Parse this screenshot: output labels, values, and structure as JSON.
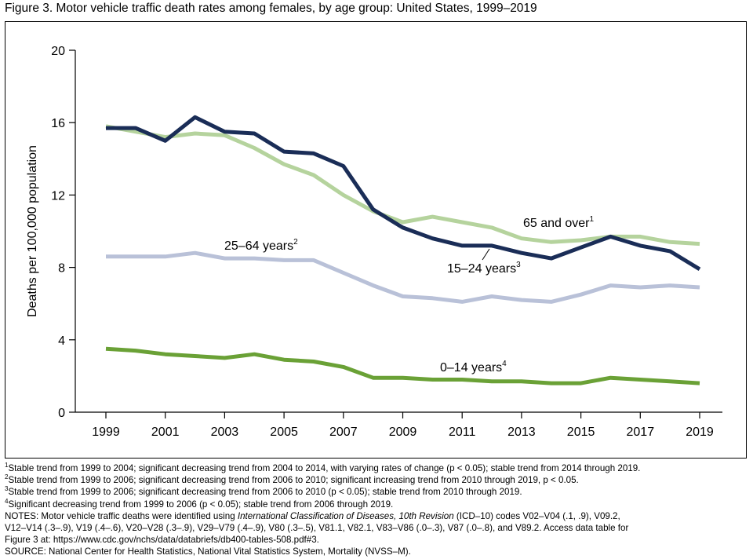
{
  "figure_title": "Figure 3. Motor vehicle traffic death rates among females, by age group: United States, 1999–2019",
  "chart_data": {
    "type": "line",
    "ylabel": "Deaths per 100,000 population",
    "xlabel": "",
    "xlim": [
      1999,
      2019
    ],
    "ylim": [
      0,
      20
    ],
    "yticks": [
      0,
      4,
      8,
      12,
      16,
      20
    ],
    "xticks": [
      1999,
      2001,
      2003,
      2005,
      2007,
      2009,
      2011,
      2013,
      2015,
      2017,
      2019
    ],
    "grid": false,
    "x": [
      1999,
      2000,
      2001,
      2002,
      2003,
      2004,
      2005,
      2006,
      2007,
      2008,
      2009,
      2010,
      2011,
      2012,
      2013,
      2014,
      2015,
      2016,
      2017,
      2018,
      2019
    ],
    "series": [
      {
        "name": "65 and over",
        "footnote": "1",
        "color": "#b5d39d",
        "values": [
          15.8,
          15.5,
          15.2,
          15.4,
          15.3,
          14.6,
          13.7,
          13.1,
          12.0,
          11.1,
          10.5,
          10.8,
          10.5,
          10.2,
          9.6,
          9.4,
          9.5,
          9.7,
          9.7,
          9.4,
          9.3
        ]
      },
      {
        "name": "15–24 years",
        "footnote": "3",
        "color": "#1a2d57",
        "values": [
          15.7,
          15.7,
          15.0,
          16.3,
          15.5,
          15.4,
          14.4,
          14.3,
          13.6,
          11.2,
          10.2,
          9.6,
          9.2,
          9.2,
          8.8,
          8.5,
          9.1,
          9.7,
          9.2,
          8.9,
          7.9
        ]
      },
      {
        "name": "25–64 years",
        "footnote": "2",
        "color": "#b9c1d8",
        "values": [
          8.6,
          8.6,
          8.6,
          8.8,
          8.5,
          8.5,
          8.4,
          8.4,
          7.7,
          7.0,
          6.4,
          6.3,
          6.1,
          6.4,
          6.2,
          6.1,
          6.5,
          7.0,
          6.9,
          7.0,
          6.9
        ]
      },
      {
        "name": "0–14 years",
        "footnote": "4",
        "color": "#6aa136",
        "values": [
          3.5,
          3.4,
          3.2,
          3.1,
          3.0,
          3.2,
          2.9,
          2.8,
          2.5,
          1.9,
          1.9,
          1.8,
          1.8,
          1.7,
          1.7,
          1.6,
          1.6,
          1.9,
          1.8,
          1.7,
          1.6
        ]
      }
    ]
  },
  "footnotes": [
    {
      "num": "1",
      "text": "Stable trend from 1999 to 2004; significant decreasing trend from 2004 to 2014, with varying rates of change (p < 0.05); stable trend from 2014 through 2019."
    },
    {
      "num": "2",
      "text": "Stable trend from 1999 to 2006; significant decreasing trend from 2006 to 2010; significant increasing trend from 2010 through 2019, p < 0.05."
    },
    {
      "num": "3",
      "text": "Stable trend from 1999 to 2006; significant decreasing trend from 2006 to 2010 (p < 0.05); stable trend from 2010 through 2019."
    },
    {
      "num": "4",
      "text": "Significant decreasing trend from 1999 to 2006 (p < 0.05); stable trend from 2006 through 2019."
    }
  ],
  "notes": {
    "label": "NOTES:",
    "text_before": " Motor vehicle traffic deaths were identified using ",
    "italic": "International Classification of Diseases, 10th Revision",
    "text_after": " (ICD–10) codes V02–V04 (.1, .9), V09.2,",
    "line2": "V12–V14 (.3–.9), V19 (.4–.6), V20–V28 (.3–.9), V29–V79 (.4–.9), V80 (.3–.5), V81.1, V82.1, V83–V86 (.0–.3), V87 (.0–.8), and V89.2. Access data table for",
    "line3": "Figure 3 at: https://www.cdc.gov/nchs/data/databriefs/db400-tables-508.pdf#3."
  },
  "source": "SOURCE: National Center for Health Statistics, National Vital Statistics System, Mortality (NVSS–M)."
}
